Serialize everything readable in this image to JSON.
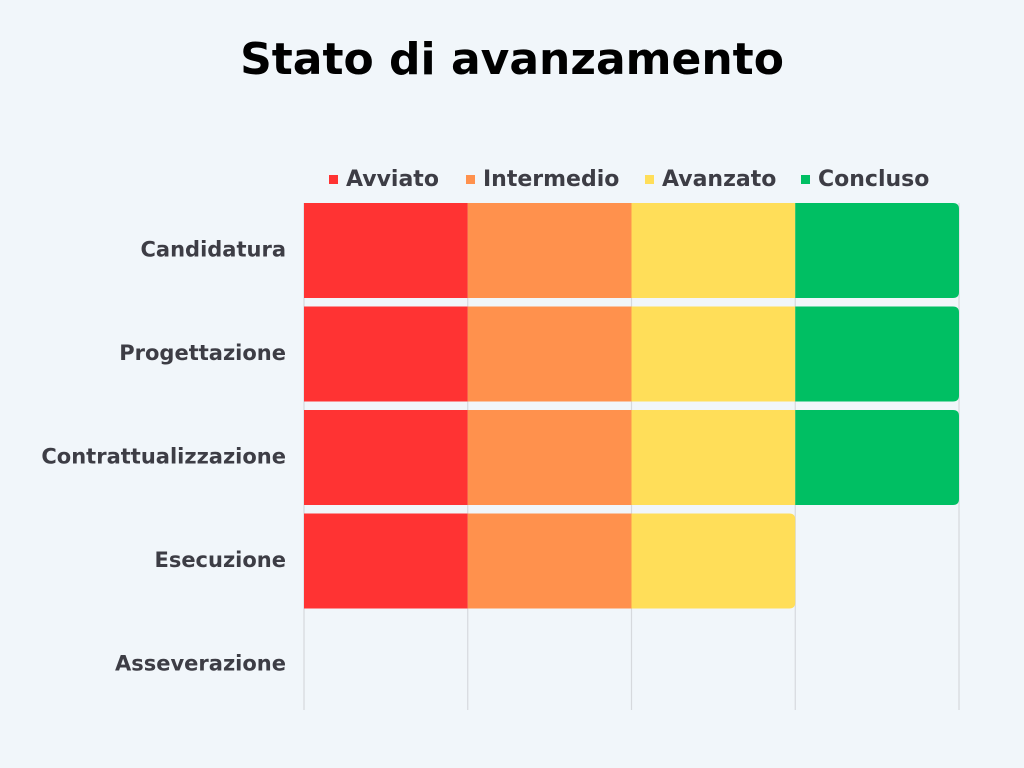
{
  "chart_data": {
    "type": "bar",
    "orientation": "horizontal",
    "stacked": true,
    "title": "Stato di avanzamento",
    "categories": [
      "Candidatura",
      "Progettazione",
      "Contrattualizzazione",
      "Esecuzione",
      "Asseverazione"
    ],
    "series": [
      {
        "name": "Avviato",
        "color": "#ff3333",
        "values": [
          1,
          1,
          1,
          1,
          0
        ]
      },
      {
        "name": "Intermedio",
        "color": "#ff914d",
        "values": [
          1,
          1,
          1,
          1,
          0
        ]
      },
      {
        "name": "Avanzato",
        "color": "#ffde59",
        "values": [
          1,
          1,
          1,
          1,
          0
        ]
      },
      {
        "name": "Concluso",
        "color": "#00bf63",
        "values": [
          1,
          1,
          1,
          0,
          0
        ]
      }
    ],
    "xlim": [
      0,
      4
    ],
    "grid": true,
    "legend": "top",
    "colors": {
      "background": "#f1f6fa",
      "gridline": "#d6d9dd",
      "label": "#3d3d45",
      "title": "#000000"
    }
  }
}
